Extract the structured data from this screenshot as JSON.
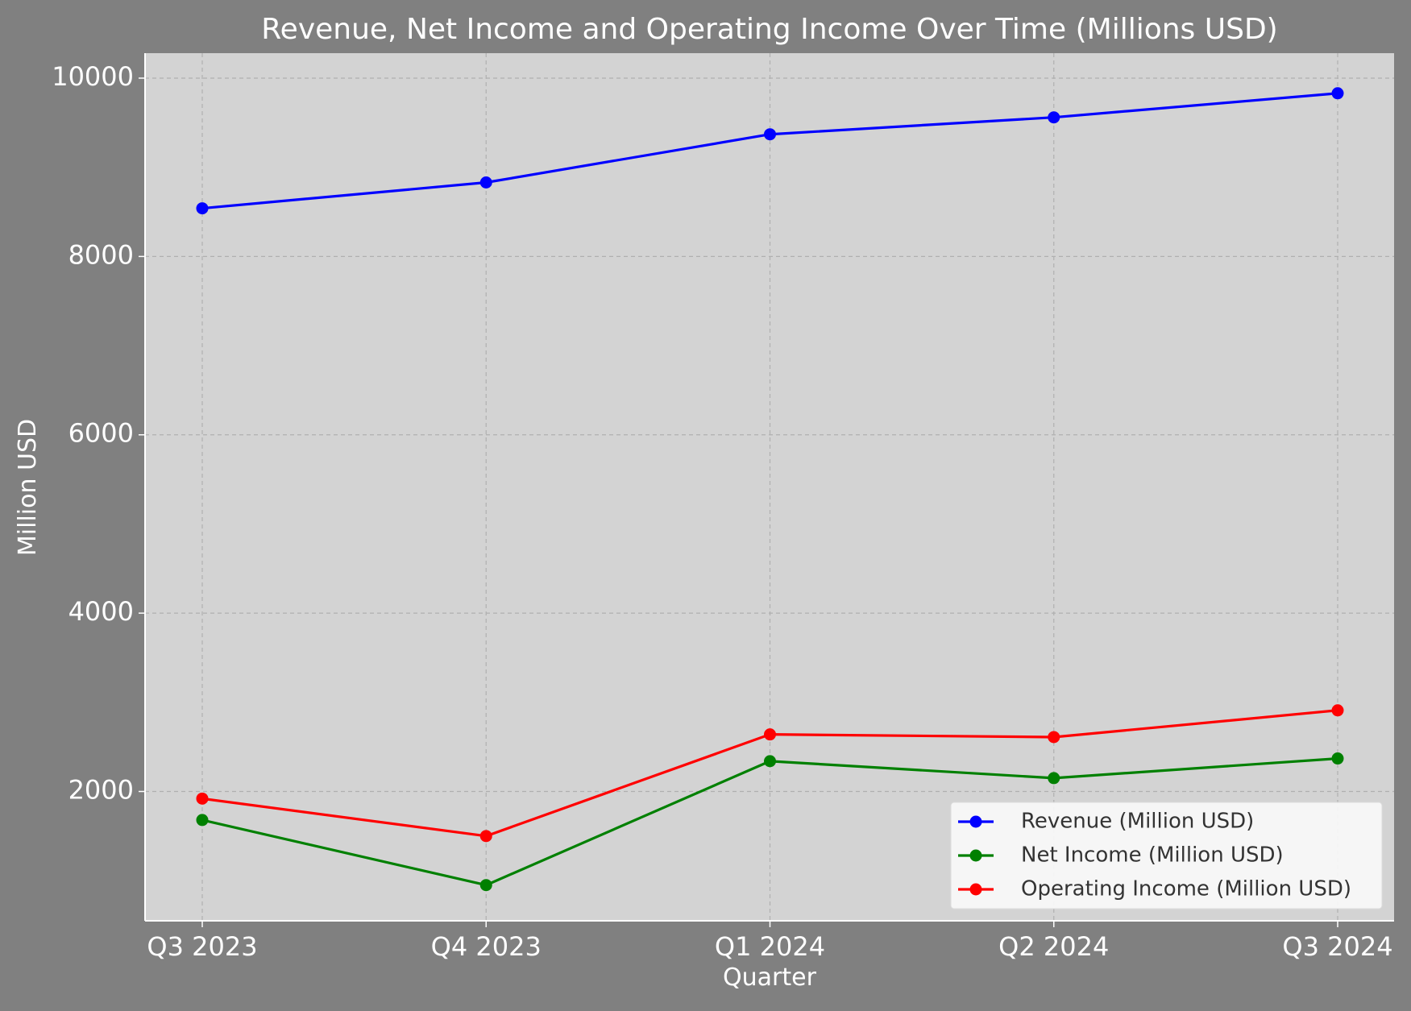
{
  "chart_data": {
    "type": "line",
    "title": "Revenue, Net Income and Operating Income Over Time (Millions USD)",
    "xlabel": "Quarter",
    "ylabel": "Million USD",
    "categories": [
      "Q3 2023",
      "Q4 2023",
      "Q1 2024",
      "Q2 2024",
      "Q3 2024"
    ],
    "ylim": [
      550,
      10280
    ],
    "yticks": [
      2000,
      4000,
      6000,
      8000,
      10000
    ],
    "grid": true,
    "legend_position": "lower-right",
    "series": [
      {
        "name": "Revenue (Million USD)",
        "color": "#0000ff",
        "values": [
          8540,
          8830,
          9370,
          9560,
          9830
        ]
      },
      {
        "name": "Net Income (Million USD)",
        "color": "#008000",
        "values": [
          1680,
          950,
          2340,
          2150,
          2370
        ]
      },
      {
        "name": "Operating Income (Million USD)",
        "color": "#ff0000",
        "values": [
          1920,
          1500,
          2640,
          2610,
          2910
        ]
      }
    ]
  },
  "colors": {
    "figure_background": "#808080",
    "plot_background": "#d3d3d3",
    "text": "#ffffff",
    "grid": "#b0b0b0",
    "legend_background": "#f8f8f8",
    "legend_text": "#333333"
  }
}
